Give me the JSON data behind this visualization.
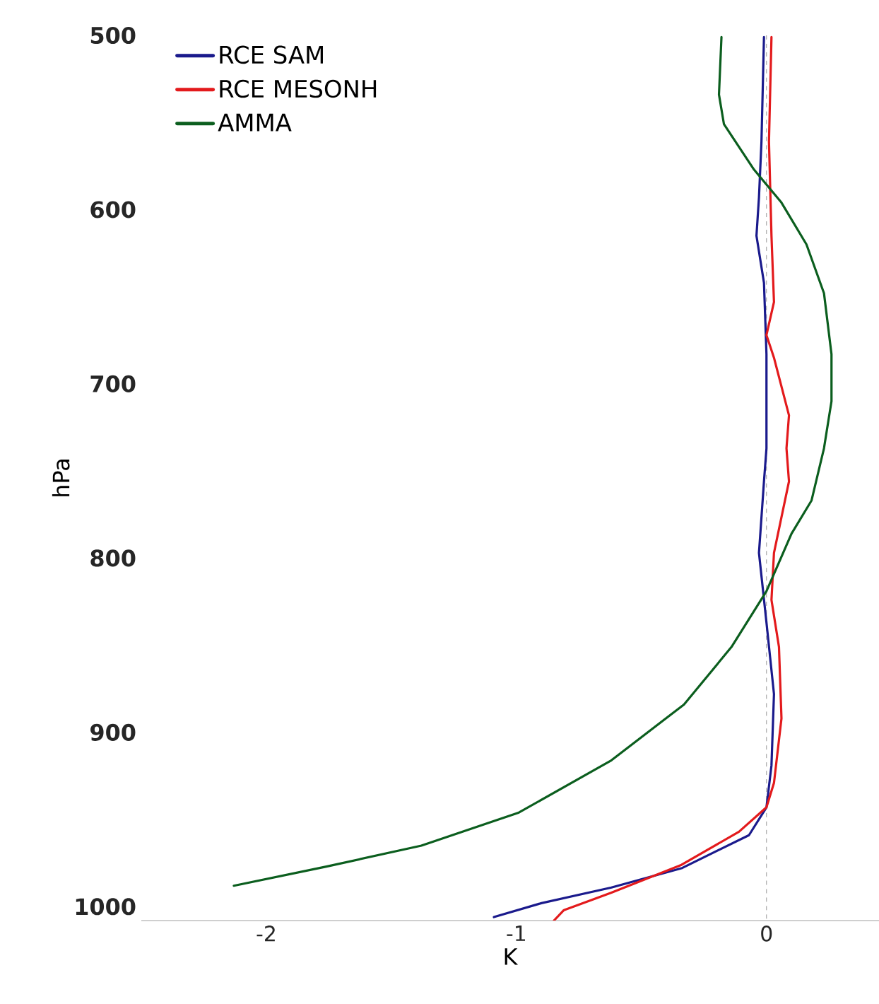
{
  "chart_data": {
    "type": "line",
    "xlabel": "K",
    "ylabel": "hPa",
    "xlim": [
      -2.5,
      0.45
    ],
    "ylim": [
      1008,
      500
    ],
    "xticks": [
      -2,
      -1,
      0
    ],
    "yticks": [
      500,
      600,
      700,
      800,
      900,
      1000
    ],
    "legend": "top left",
    "grid": false,
    "marker": "none",
    "line_style": "solid",
    "ref_lines": [
      {
        "axis": "x",
        "value": 0,
        "color": "#808080",
        "line_style": "dashed"
      }
    ],
    "series": [
      {
        "name": "RCE SAM",
        "color": "#1a1a8c",
        "x": [
          -0.01,
          -0.02,
          -0.03,
          -0.04,
          -0.01,
          0.0,
          0.0,
          -0.01,
          -0.03,
          0.0,
          0.03,
          0.02,
          0.0,
          -0.07,
          -0.34,
          -0.62,
          -0.9,
          -1.09
        ],
        "values": [
          501,
          561,
          593,
          615,
          642,
          683,
          737,
          756,
          797,
          837,
          878,
          919,
          943,
          959,
          978,
          989,
          998,
          1006
        ]
      },
      {
        "name": "RCE MESONH",
        "color": "#e31a1c",
        "x": [
          0.02,
          0.01,
          0.02,
          0.03,
          0.0,
          0.03,
          0.09,
          0.08,
          0.09,
          0.03,
          0.02,
          0.05,
          0.06,
          0.03,
          0.0,
          -0.11,
          -0.34,
          -0.62,
          -0.81,
          -0.85
        ],
        "values": [
          501,
          561,
          615,
          653,
          672,
          685,
          718,
          737,
          756,
          797,
          824,
          851,
          892,
          929,
          943,
          957,
          976,
          992,
          1002,
          1008
        ]
      },
      {
        "name": "AMMA",
        "color": "#0b5e1e",
        "x": [
          -0.18,
          -0.19,
          -0.17,
          -0.05,
          0.06,
          0.16,
          0.23,
          0.26,
          0.26,
          0.23,
          0.18,
          0.1,
          0.0,
          -0.14,
          -0.33,
          -0.62,
          -0.99,
          -1.38,
          -1.76,
          -2.13
        ],
        "values": [
          501,
          534,
          551,
          577,
          596,
          620,
          648,
          683,
          710,
          737,
          767,
          786,
          819,
          851,
          884,
          916,
          946,
          965,
          977,
          988
        ]
      }
    ]
  }
}
